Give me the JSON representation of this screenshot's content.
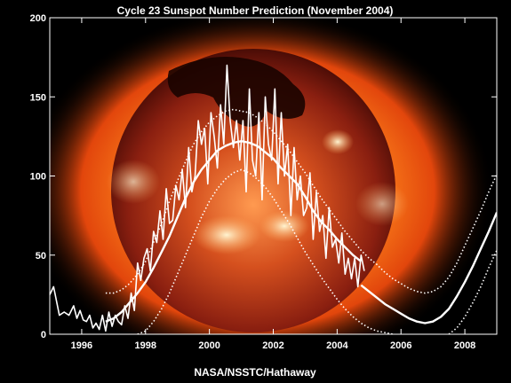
{
  "chart_data": {
    "type": "line",
    "title": "Cycle 23 Sunspot Number Prediction (November 2004)",
    "credit": "NASA/NSSTC/Hathaway",
    "xlim": [
      1995.0,
      2009.0
    ],
    "ylim": [
      0,
      200
    ],
    "x_ticks": [
      1996,
      1998,
      2000,
      2002,
      2004,
      2006,
      2008
    ],
    "y_ticks": [
      0,
      50,
      100,
      150,
      200
    ],
    "background": "sun-x-ray-image",
    "colors": {
      "background": "#000000",
      "lines": "#ffffff",
      "sun_core": "#c0391b",
      "sun_corona": "#ff7a1a"
    },
    "series": [
      {
        "style": "solid-thin",
        "x": [
          1995.0,
          1995.12,
          1995.2,
          1995.3,
          1995.45,
          1995.6,
          1995.75,
          1995.85,
          1995.95,
          1996.05,
          1996.15,
          1996.25,
          1996.35,
          1996.45,
          1996.55,
          1996.65,
          1996.75,
          1996.85,
          1996.95,
          1997.05,
          1997.15,
          1997.25,
          1997.35,
          1997.45,
          1997.55,
          1997.65,
          1997.75,
          1997.85,
          1997.95,
          1998.05,
          1998.15,
          1998.25,
          1998.35,
          1998.45,
          1998.55,
          1998.65,
          1998.75,
          1998.85,
          1998.95,
          1999.05,
          1999.15,
          1999.25,
          1999.35,
          1999.45,
          1999.55,
          1999.65,
          1999.75,
          1999.85,
          1999.95,
          2000.05,
          2000.15,
          2000.25,
          2000.35,
          2000.45,
          2000.55,
          2000.65,
          2000.75,
          2000.85,
          2000.95,
          2001.05,
          2001.15,
          2001.25,
          2001.35,
          2001.45,
          2001.55,
          2001.65,
          2001.75,
          2001.85,
          2001.95,
          2002.05,
          2002.15,
          2002.25,
          2002.35,
          2002.45,
          2002.55,
          2002.65,
          2002.75,
          2002.85,
          2002.95,
          2003.05,
          2003.15,
          2003.25,
          2003.35,
          2003.45,
          2003.55,
          2003.65,
          2003.75,
          2003.85,
          2003.95,
          2004.05,
          2004.15,
          2004.25,
          2004.35,
          2004.45,
          2004.55,
          2004.65,
          2004.75,
          2004.85
        ],
        "y": [
          25,
          30,
          22,
          12,
          14,
          12,
          18,
          10,
          15,
          9,
          8,
          12,
          4,
          7,
          3,
          12,
          2,
          14,
          5,
          12,
          8,
          6,
          18,
          10,
          26,
          15,
          45,
          34,
          48,
          54,
          40,
          65,
          58,
          78,
          60,
          92,
          70,
          72,
          94,
          85,
          104,
          80,
          118,
          90,
          100,
          135,
          120,
          130,
          95,
          140,
          125,
          105,
          145,
          120,
          170,
          135,
          118,
          135,
          110,
          135,
          90,
          155,
          110,
          100,
          140,
          85,
          150,
          120,
          110,
          155,
          95,
          140,
          100,
          120,
          75,
          118,
          85,
          100,
          75,
          80,
          102,
          60,
          90,
          65,
          75,
          48,
          80,
          55,
          60,
          45,
          64,
          38,
          48,
          35,
          48,
          30,
          50,
          40
        ]
      },
      {
        "style": "solid-thick",
        "x": [
          1996.75,
          1997.0,
          1997.25,
          1997.5,
          1997.75,
          1998.0,
          1998.25,
          1998.5,
          1998.75,
          1999.0,
          1999.25,
          1999.5,
          1999.75,
          2000.0,
          2000.25,
          2000.5,
          2000.75,
          2001.0,
          2001.25,
          2001.5,
          2001.75,
          2002.0,
          2002.25,
          2002.5,
          2002.75,
          2003.0,
          2003.25,
          2003.5,
          2003.75,
          2004.0,
          2004.25,
          2004.5,
          2004.75
        ],
        "y": [
          8,
          10,
          14,
          20,
          26,
          33,
          42,
          52,
          62,
          74,
          86,
          96,
          104,
          110,
          116,
          119,
          121,
          122,
          121,
          119,
          115,
          111,
          105,
          100,
          95,
          87,
          78,
          71,
          66,
          60,
          55,
          50,
          46
        ]
      },
      {
        "style": "solid-thick",
        "x": [
          2004.75,
          2005.0,
          2005.25,
          2005.5,
          2005.75,
          2006.0,
          2006.25,
          2006.5,
          2006.75,
          2007.0,
          2007.25,
          2007.5,
          2007.75,
          2008.0,
          2008.25,
          2008.5,
          2008.75,
          2009.0
        ],
        "y": [
          31,
          27,
          23,
          19,
          16,
          13,
          10,
          8,
          7,
          8,
          11,
          16,
          24,
          33,
          43,
          54,
          65,
          77
        ]
      },
      {
        "style": "dotted",
        "x": [
          1996.75,
          1997.0,
          1997.25,
          1997.5,
          1997.75,
          1998.0,
          1998.25,
          1998.5,
          1998.75,
          1999.0,
          1999.25,
          1999.5,
          1999.75,
          2000.0,
          2000.25,
          2000.5,
          2000.75,
          2001.0,
          2001.25,
          2001.5,
          2001.75,
          2002.0,
          2002.25,
          2002.5,
          2002.75,
          2003.0,
          2003.25,
          2003.5,
          2003.75,
          2004.0,
          2004.25,
          2004.5,
          2004.75,
          2005.0,
          2005.25,
          2005.5,
          2005.75,
          2006.0,
          2006.25,
          2006.5,
          2006.75,
          2007.0,
          2007.25,
          2007.5,
          2007.75,
          2008.0,
          2008.25,
          2008.5,
          2008.75,
          2009.0
        ],
        "y": [
          26,
          26,
          28,
          32,
          38,
          46,
          58,
          70,
          84,
          97,
          109,
          120,
          128,
          134,
          138,
          141,
          142,
          141,
          140,
          137,
          133,
          128,
          122,
          116,
          109,
          102,
          94,
          86,
          79,
          72,
          65,
          59,
          53,
          48,
          44,
          39,
          35,
          32,
          29,
          27,
          26,
          27,
          30,
          36,
          45,
          56,
          67,
          78,
          90,
          101
        ]
      },
      {
        "style": "dotted",
        "x": [
          1997.75,
          1998.0,
          1998.25,
          1998.5,
          1998.75,
          1999.0,
          1999.25,
          1999.5,
          1999.75,
          2000.0,
          2000.25,
          2000.5,
          2000.75,
          2001.0,
          2001.25,
          2001.5,
          2001.75,
          2002.0,
          2002.25,
          2002.5,
          2002.75,
          2003.0,
          2003.25,
          2003.5,
          2003.75,
          2004.0,
          2004.25,
          2004.5,
          2004.75,
          2005.0,
          2005.25,
          2005.5,
          2005.75
        ],
        "y": [
          0,
          2,
          8,
          16,
          26,
          38,
          50,
          62,
          74,
          84,
          92,
          98,
          102,
          104,
          102,
          98,
          93,
          86,
          78,
          70,
          61,
          52,
          44,
          36,
          29,
          22,
          16,
          11,
          7,
          4,
          2,
          1,
          0
        ]
      },
      {
        "style": "dotted",
        "x": [
          2007.5,
          2007.75,
          2008.0,
          2008.25,
          2008.5,
          2008.75,
          2009.0
        ],
        "y": [
          0,
          4,
          11,
          20,
          30,
          42,
          53
        ]
      }
    ]
  }
}
